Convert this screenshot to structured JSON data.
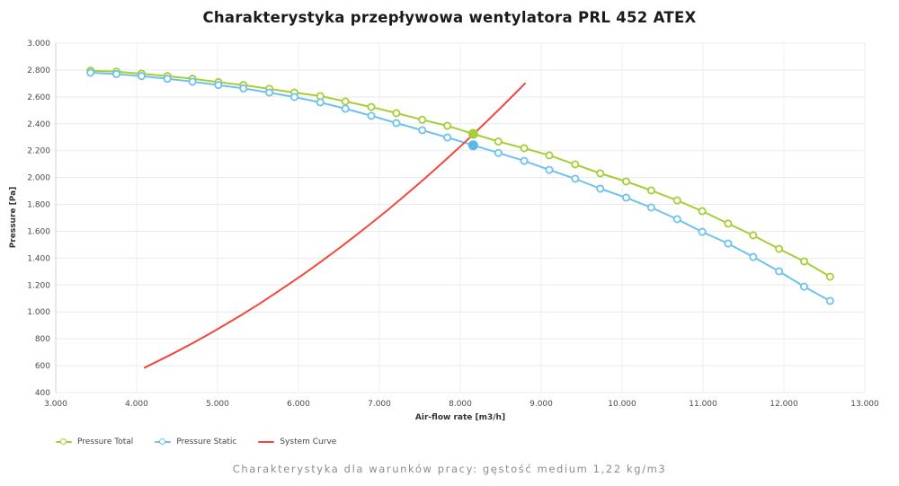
{
  "title": "Charakterystyka przepływowa wentylatora PRL 452 ATEX",
  "caption": "Charakterystyka dla warunków pracy: gęstość medium 1,22 kg/m3",
  "legend": {
    "items": [
      {
        "label": "Pressure Total",
        "color": "#a6ce38",
        "marker": "open-circle"
      },
      {
        "label": "Pressure Static",
        "color": "#6fc2ec",
        "marker": "open-circle"
      },
      {
        "label": "System Curve",
        "color": "#f5463c",
        "marker": "none"
      }
    ]
  },
  "chart_data": {
    "type": "line",
    "title": "Charakterystyka przepływowa wentylatora PRL 452 ATEX",
    "xlabel": "Air-flow rate [m3/h]",
    "ylabel": "Pressure [Pa]",
    "xlim": [
      3000,
      13000
    ],
    "ylim": [
      400,
      3000
    ],
    "grid": true,
    "legend_position": "bottom-left",
    "x_ticks": [
      {
        "v": 3000,
        "label": "3.000"
      },
      {
        "v": 4000,
        "label": "4.000"
      },
      {
        "v": 5000,
        "label": "5.000"
      },
      {
        "v": 6000,
        "label": "6.000"
      },
      {
        "v": 7000,
        "label": "7.000"
      },
      {
        "v": 8000,
        "label": "8.000"
      },
      {
        "v": 9000,
        "label": "9.000"
      },
      {
        "v": 10000,
        "label": "10.000"
      },
      {
        "v": 11000,
        "label": "11.000"
      },
      {
        "v": 12000,
        "label": "12.000"
      },
      {
        "v": 13000,
        "label": "13.000"
      }
    ],
    "y_ticks": [
      {
        "v": 3000,
        "label": "3.000"
      },
      {
        "v": 2800,
        "label": "2.800"
      },
      {
        "v": 2600,
        "label": "2.600"
      },
      {
        "v": 2400,
        "label": "2.400"
      },
      {
        "v": 2200,
        "label": "2.200"
      },
      {
        "v": 2000,
        "label": "2.000"
      },
      {
        "v": 1800,
        "label": "1.800"
      },
      {
        "v": 1600,
        "label": "1.600"
      },
      {
        "v": 1400,
        "label": "1.400"
      },
      {
        "v": 1200,
        "label": "1.200"
      },
      {
        "v": 1000,
        "label": "1.000"
      },
      {
        "v": 800,
        "label": "800"
      },
      {
        "v": 600,
        "label": "600"
      },
      {
        "v": 400,
        "label": "400"
      }
    ],
    "series": [
      {
        "name": "Pressure Total",
        "color": "#a6ce38",
        "marker": "open-circle",
        "points": [
          [
            3430,
            2795
          ],
          [
            3750,
            2788
          ],
          [
            4060,
            2773
          ],
          [
            4380,
            2755
          ],
          [
            4690,
            2735
          ],
          [
            5010,
            2710
          ],
          [
            5320,
            2688
          ],
          [
            5640,
            2660
          ],
          [
            5950,
            2632
          ],
          [
            6270,
            2606
          ],
          [
            6580,
            2566
          ],
          [
            6900,
            2525
          ],
          [
            7210,
            2479
          ],
          [
            7530,
            2430
          ],
          [
            7840,
            2385
          ],
          [
            8160,
            2325
          ],
          [
            8470,
            2268
          ],
          [
            8790,
            2218
          ],
          [
            9100,
            2165
          ],
          [
            9420,
            2098
          ],
          [
            9730,
            2031
          ],
          [
            10050,
            1971
          ],
          [
            10360,
            1904
          ],
          [
            10680,
            1830
          ],
          [
            10990,
            1750
          ],
          [
            11310,
            1657
          ],
          [
            11620,
            1570
          ],
          [
            11940,
            1469
          ],
          [
            12250,
            1376
          ],
          [
            12570,
            1262
          ]
        ]
      },
      {
        "name": "Pressure Static",
        "color": "#6fc2ec",
        "marker": "open-circle",
        "points": [
          [
            3430,
            2780
          ],
          [
            3750,
            2770
          ],
          [
            4060,
            2755
          ],
          [
            4380,
            2735
          ],
          [
            4690,
            2713
          ],
          [
            5010,
            2688
          ],
          [
            5320,
            2663
          ],
          [
            5640,
            2632
          ],
          [
            5950,
            2599
          ],
          [
            6270,
            2559
          ],
          [
            6580,
            2512
          ],
          [
            6900,
            2459
          ],
          [
            7210,
            2405
          ],
          [
            7530,
            2352
          ],
          [
            7840,
            2298
          ],
          [
            8160,
            2240
          ],
          [
            8470,
            2183
          ],
          [
            8790,
            2124
          ],
          [
            9100,
            2057
          ],
          [
            9420,
            1991
          ],
          [
            9730,
            1917
          ],
          [
            10050,
            1850
          ],
          [
            10360,
            1777
          ],
          [
            10680,
            1690
          ],
          [
            10990,
            1596
          ],
          [
            11310,
            1509
          ],
          [
            11620,
            1409
          ],
          [
            11940,
            1302
          ],
          [
            12250,
            1188
          ],
          [
            12570,
            1082
          ]
        ]
      },
      {
        "name": "System Curve",
        "color": "#f5463c",
        "marker": "none",
        "points": [
          [
            4100,
            586
          ],
          [
            4300,
            645
          ],
          [
            4500,
            706
          ],
          [
            4700,
            770
          ],
          [
            4900,
            837
          ],
          [
            5100,
            907
          ],
          [
            5300,
            979
          ],
          [
            5500,
            1054
          ],
          [
            5700,
            1133
          ],
          [
            5900,
            1214
          ],
          [
            6100,
            1297
          ],
          [
            6300,
            1384
          ],
          [
            6500,
            1473
          ],
          [
            6700,
            1565
          ],
          [
            6900,
            1660
          ],
          [
            7100,
            1757
          ],
          [
            7300,
            1858
          ],
          [
            7500,
            1961
          ],
          [
            7700,
            2067
          ],
          [
            7900,
            2176
          ],
          [
            8100,
            2287
          ],
          [
            8300,
            2402
          ],
          [
            8500,
            2519
          ],
          [
            8700,
            2639
          ],
          [
            8800,
            2700
          ]
        ]
      }
    ],
    "operating_points": [
      {
        "series": "Pressure Total",
        "x": 8160,
        "y": 2325,
        "color": "#a6ce38"
      },
      {
        "series": "Pressure Static",
        "x": 8160,
        "y": 2240,
        "color": "#5bb9e9"
      }
    ]
  }
}
